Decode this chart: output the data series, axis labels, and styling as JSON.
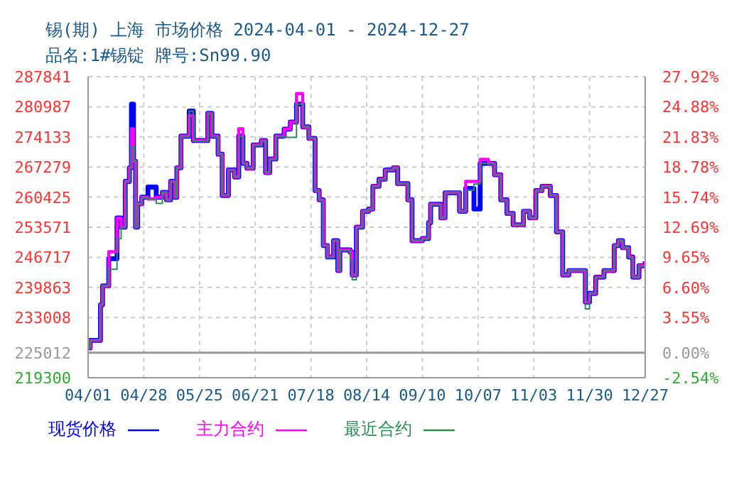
{
  "chart_data": {
    "type": "step",
    "title": "锡(期) 上海 市场价格 2024-04-01 - 2024-12-27",
    "subtitle": "品名:1#锡锭 牌号:Sn99.90",
    "x": [
      "2024-04-01",
      "2024-04-02",
      "2024-04-07",
      "2024-04-08",
      "2024-04-11",
      "2024-04-15",
      "2024-04-17",
      "2024-04-19",
      "2024-04-21",
      "2024-04-22",
      "2024-04-23",
      "2024-04-24",
      "2024-04-25",
      "2024-04-27",
      "2024-04-30",
      "2024-05-04",
      "2024-05-07",
      "2024-05-09",
      "2024-05-11",
      "2024-05-13",
      "2024-05-14",
      "2024-05-16",
      "2024-05-18",
      "2024-05-20",
      "2024-05-22",
      "2024-05-27",
      "2024-05-29",
      "2024-05-31",
      "2024-06-03",
      "2024-06-05",
      "2024-06-08",
      "2024-06-11",
      "2024-06-13",
      "2024-06-15",
      "2024-06-17",
      "2024-06-20",
      "2024-06-24",
      "2024-06-26",
      "2024-06-28",
      "2024-07-01",
      "2024-07-05",
      "2024-07-08",
      "2024-07-11",
      "2024-07-14",
      "2024-07-17",
      "2024-07-20",
      "2024-07-22",
      "2024-07-24",
      "2024-07-26",
      "2024-07-29",
      "2024-07-31",
      "2024-08-01",
      "2024-08-06",
      "2024-08-07",
      "2024-08-09",
      "2024-08-12",
      "2024-08-15",
      "2024-08-17",
      "2024-08-20",
      "2024-08-23",
      "2024-08-27",
      "2024-08-29",
      "2024-09-03",
      "2024-09-05",
      "2024-09-10",
      "2024-09-13",
      "2024-09-14",
      "2024-09-18",
      "2024-09-19",
      "2024-09-21",
      "2024-09-25",
      "2024-09-28",
      "2024-10-01",
      "2024-10-05",
      "2024-10-08",
      "2024-10-12",
      "2024-10-15",
      "2024-10-18",
      "2024-10-21",
      "2024-10-24",
      "2024-10-29",
      "2024-11-01",
      "2024-11-04",
      "2024-11-07",
      "2024-11-11",
      "2024-11-14",
      "2024-11-17",
      "2024-11-20",
      "2024-11-22",
      "2024-11-26",
      "2024-11-28",
      "2024-11-30",
      "2024-12-03",
      "2024-12-07",
      "2024-12-10",
      "2024-12-12",
      "2024-12-14",
      "2024-12-16",
      "2024-12-19",
      "2024-12-21",
      "2024-12-24",
      "2024-12-27"
    ],
    "series": [
      {
        "name": "现货价格",
        "color": "#0000ff",
        "values": [
          226100,
          227800,
          235900,
          240200,
          246400,
          255700,
          253600,
          264000,
          267100,
          281600,
          268600,
          253600,
          258900,
          260400,
          262700,
          260400,
          261500,
          259800,
          264000,
          260400,
          267100,
          274300,
          274300,
          280000,
          273300,
          273300,
          279500,
          274300,
          270200,
          260800,
          266600,
          265000,
          274300,
          268100,
          267000,
          272300,
          273300,
          266000,
          269100,
          274300,
          275900,
          277500,
          281600,
          276400,
          273800,
          261900,
          259800,
          249400,
          246800,
          250500,
          243700,
          248400,
          247900,
          242700,
          253600,
          257200,
          257700,
          262900,
          264500,
          266600,
          267100,
          263500,
          259800,
          250500,
          251000,
          254600,
          258800,
          258800,
          255700,
          261400,
          261400,
          257200,
          262400,
          257700,
          268100,
          268100,
          265500,
          259800,
          256700,
          254100,
          257200,
          255700,
          261900,
          262900,
          260800,
          252500,
          242700,
          243700,
          243700,
          243700,
          236500,
          238500,
          242200,
          243700,
          243700,
          249400,
          250500,
          248900,
          246800,
          242200,
          244800,
          245800
        ]
      },
      {
        "name": "主力合约",
        "color": "#ff00ff",
        "values": [
          226100,
          227800,
          235900,
          240200,
          248000,
          255700,
          253600,
          264000,
          267100,
          276000,
          268600,
          253600,
          258900,
          260400,
          260000,
          260400,
          261500,
          259800,
          264000,
          260400,
          267100,
          274300,
          274300,
          279000,
          273300,
          273300,
          279500,
          274300,
          270200,
          260800,
          266600,
          265000,
          276000,
          268100,
          267000,
          272300,
          273300,
          266000,
          269100,
          274300,
          275900,
          277500,
          284000,
          276400,
          273800,
          261900,
          259800,
          249400,
          246800,
          250500,
          243700,
          248400,
          247900,
          242700,
          253600,
          257200,
          257700,
          262900,
          264500,
          266600,
          267100,
          263500,
          259800,
          250500,
          251000,
          254600,
          258800,
          258800,
          255700,
          261400,
          261400,
          257200,
          264000,
          264000,
          269000,
          268100,
          265500,
          259800,
          256700,
          254100,
          257200,
          255700,
          261900,
          262900,
          260800,
          252500,
          242700,
          243700,
          243700,
          243700,
          236500,
          238500,
          242200,
          243700,
          243700,
          249400,
          250500,
          248900,
          246800,
          242200,
          244800,
          245800
        ]
      },
      {
        "name": "最近合约",
        "color": "#2e8b57",
        "values": [
          226100,
          227800,
          235900,
          240200,
          244000,
          251000,
          253600,
          264000,
          267100,
          272000,
          268600,
          253600,
          258900,
          260400,
          260000,
          259000,
          261500,
          259800,
          264000,
          260400,
          267100,
          274300,
          274300,
          280000,
          273300,
          273300,
          279500,
          274300,
          270200,
          260800,
          266600,
          265000,
          274300,
          268100,
          267000,
          272300,
          273300,
          266000,
          269100,
          274300,
          274000,
          274000,
          281600,
          276400,
          273800,
          261900,
          259800,
          249400,
          246800,
          250500,
          243700,
          248400,
          246000,
          241600,
          253600,
          257200,
          257700,
          262900,
          264500,
          266600,
          267100,
          263500,
          259800,
          250500,
          251000,
          254600,
          258800,
          258800,
          255700,
          261400,
          261400,
          257200,
          262000,
          263400,
          268100,
          268100,
          265500,
          259800,
          256700,
          254100,
          257200,
          255700,
          261900,
          262900,
          260800,
          252500,
          242700,
          243700,
          243700,
          243700,
          235000,
          238500,
          242200,
          243700,
          243700,
          249400,
          250500,
          248900,
          246800,
          242200,
          244800,
          245800
        ]
      }
    ],
    "xlim": [
      "2024-04-01",
      "2024-12-27"
    ],
    "xticks": [
      {
        "value": "2024-04-01",
        "label": "04/01"
      },
      {
        "value": "2024-04-28",
        "label": "04/28"
      },
      {
        "value": "2024-05-25",
        "label": "05/25"
      },
      {
        "value": "2024-06-21",
        "label": "06/21"
      },
      {
        "value": "2024-07-18",
        "label": "07/18"
      },
      {
        "value": "2024-08-14",
        "label": "08/14"
      },
      {
        "value": "2024-09-10",
        "label": "09/10"
      },
      {
        "value": "2024-10-07",
        "label": "10/07"
      },
      {
        "value": "2024-11-03",
        "label": "11/03"
      },
      {
        "value": "2024-11-30",
        "label": "11/30"
      },
      {
        "value": "2024-12-27",
        "label": "12/27"
      }
    ],
    "ylim": [
      219300,
      287841
    ],
    "yticks": [
      219300,
      225012,
      233008,
      239863,
      246717,
      253571,
      260425,
      267279,
      274133,
      280987,
      287841
    ],
    "y2lim": [
      -2.54,
      27.92
    ],
    "y2ticks": [
      {
        "value": -2.54,
        "label": "-2.54%"
      },
      {
        "value": 0,
        "label": "0.00%"
      },
      {
        "value": 3.55,
        "label": "3.55%"
      },
      {
        "value": 6.6,
        "label": "6.60%"
      },
      {
        "value": 9.65,
        "label": "9.65%"
      },
      {
        "value": 12.69,
        "label": "12.69%"
      },
      {
        "value": 15.74,
        "label": "15.74%"
      },
      {
        "value": 18.78,
        "label": "18.78%"
      },
      {
        "value": 21.83,
        "label": "21.83%"
      },
      {
        "value": 24.88,
        "label": "24.88%"
      },
      {
        "value": 27.92,
        "label": "27.92%"
      }
    ],
    "ref_lines": [
      {
        "axis": "y2",
        "value": 0,
        "color": "#999999"
      }
    ],
    "grid": true,
    "legend": "bottom",
    "marker": "none",
    "line_style": "solid"
  }
}
